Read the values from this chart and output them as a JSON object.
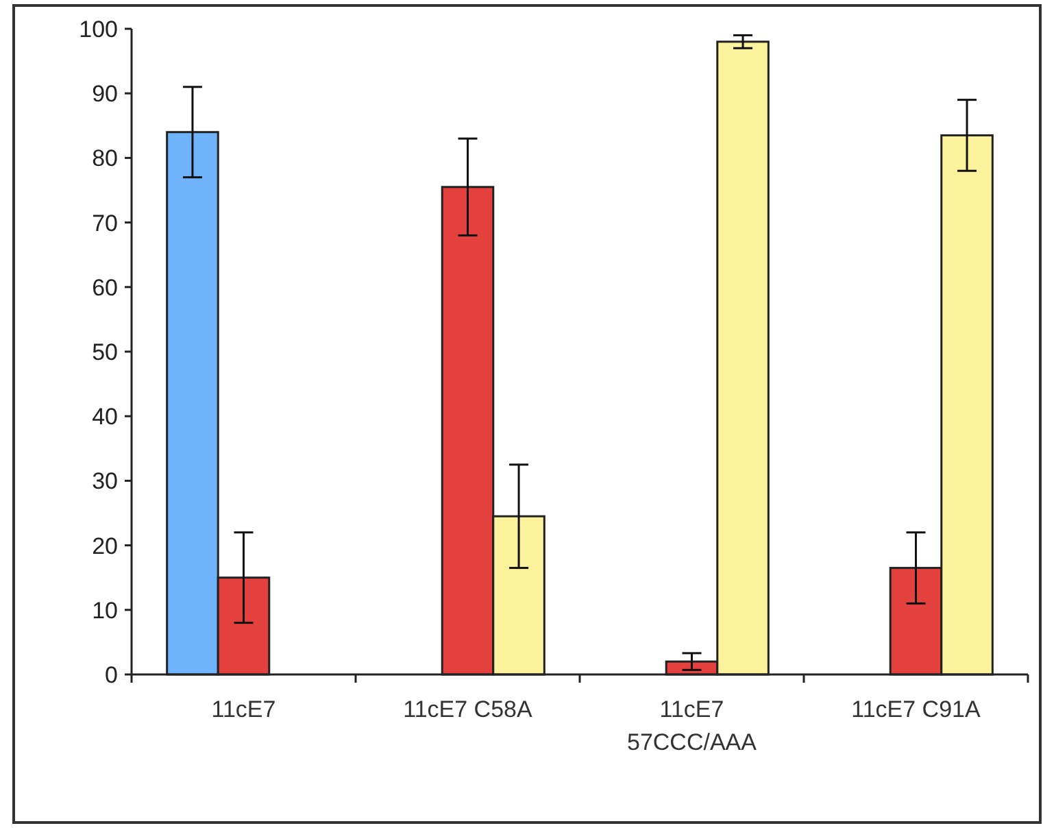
{
  "chart_data": {
    "type": "bar",
    "categories": [
      "11cE7",
      "11cE7 C58A",
      "11cE7 57CCC/AAA",
      "11cE7 C91A"
    ],
    "series": [
      {
        "color": "#6fb4fb",
        "values": [
          84,
          null,
          null,
          null
        ],
        "errors": [
          7,
          null,
          null,
          null
        ]
      },
      {
        "color": "#e4413e",
        "values": [
          15,
          75.5,
          2,
          16.5
        ],
        "errors": [
          7,
          7.5,
          1.3,
          5.5
        ]
      },
      {
        "color": "#fcf29c",
        "values": [
          null,
          24.5,
          98,
          83.5
        ],
        "errors": [
          null,
          8,
          1,
          5.5
        ]
      }
    ],
    "ylim": [
      0,
      100
    ],
    "yticks": [
      0,
      10,
      20,
      30,
      40,
      50,
      60,
      70,
      80,
      90,
      100
    ]
  }
}
